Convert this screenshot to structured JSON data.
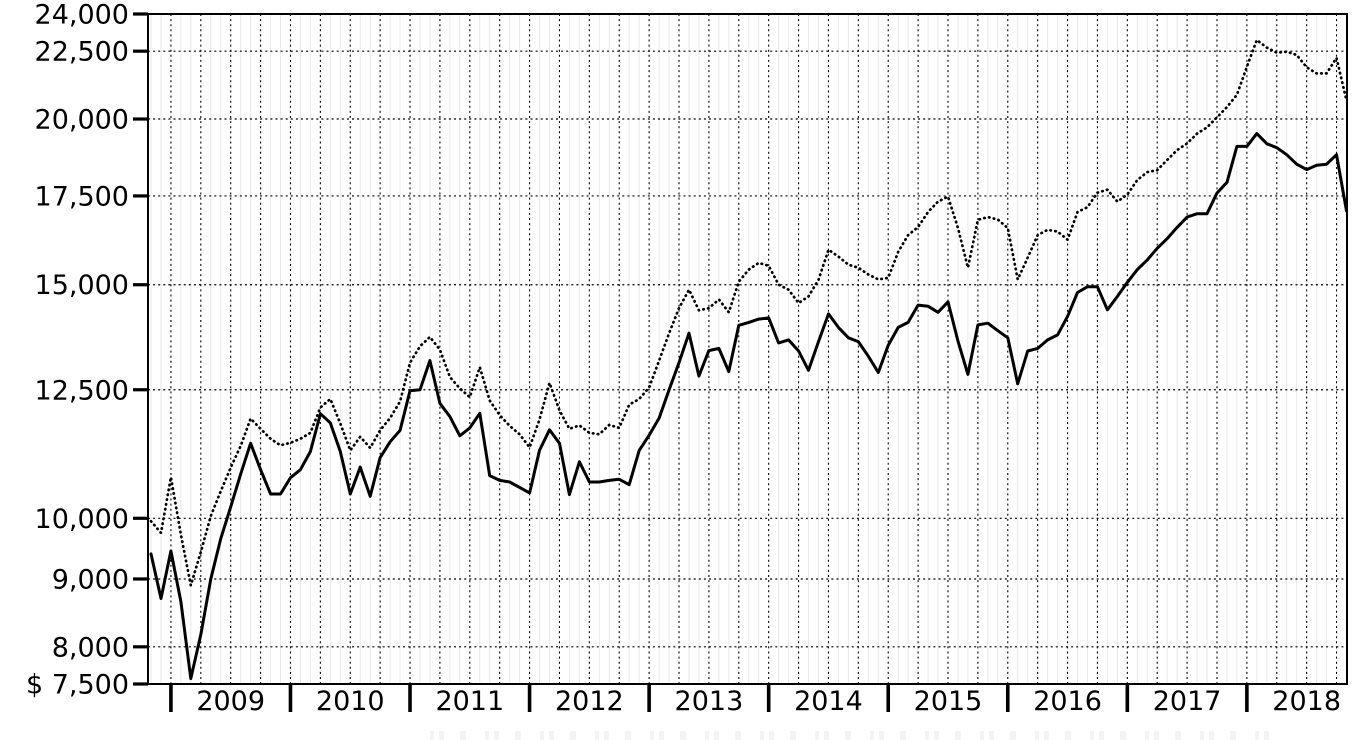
{
  "chart_data": {
    "type": "line",
    "title": "",
    "x_start_month": "2008-11",
    "x_end_month": "2018-11",
    "points_per_series": 121,
    "x_axis": {
      "year_labels": [
        "2009",
        "2010",
        "2011",
        "2012",
        "2013",
        "2014",
        "2015",
        "2016",
        "2017",
        "2018"
      ],
      "major_ticks_at": "year boundaries",
      "minor_gridlines": "monthly (faint), quarterly (dark dotted)"
    },
    "y_axis": {
      "scale": "log",
      "min": 7500,
      "max": 24000,
      "ticks": [
        {
          "value": 24000,
          "label": "24,000"
        },
        {
          "value": 22500,
          "label": "22,500"
        },
        {
          "value": 20000,
          "label": "20,000"
        },
        {
          "value": 17500,
          "label": "17,500"
        },
        {
          "value": 15000,
          "label": "15,000"
        },
        {
          "value": 12500,
          "label": "12,500"
        },
        {
          "value": 10000,
          "label": "10,000"
        },
        {
          "value": 9000,
          "label": "9,000"
        },
        {
          "value": 8000,
          "label": "8,000"
        },
        {
          "value": 7500,
          "label": "$ 7,500"
        }
      ],
      "gridline_values": [
        22500,
        20000,
        17500,
        15000,
        12500,
        10000,
        9000,
        8000
      ]
    },
    "grid": true,
    "legend": "none",
    "series": [
      {
        "name": "dotted-series",
        "style": "dotted",
        "color": "#000000",
        "values": [
          9950,
          9750,
          10740,
          9720,
          8900,
          9430,
          10040,
          10480,
          10920,
          11340,
          11890,
          11680,
          11480,
          11350,
          11400,
          11480,
          11600,
          12120,
          12300,
          11790,
          11250,
          11520,
          11300,
          11650,
          11900,
          12250,
          13100,
          13480,
          13700,
          13400,
          12780,
          12530,
          12340,
          13000,
          12270,
          11960,
          11740,
          11570,
          11310,
          11870,
          12650,
          12060,
          11680,
          11750,
          11600,
          11570,
          11760,
          11700,
          12180,
          12300,
          12550,
          13150,
          13790,
          14400,
          14870,
          14350,
          14400,
          14620,
          14300,
          15080,
          15400,
          15580,
          15500,
          15000,
          14870,
          14530,
          14700,
          15130,
          15940,
          15750,
          15530,
          15450,
          15270,
          15140,
          15180,
          15880,
          16350,
          16580,
          17020,
          17330,
          17480,
          16550,
          15450,
          16790,
          16870,
          16800,
          16550,
          15140,
          15720,
          16350,
          16500,
          16450,
          16220,
          17020,
          17160,
          17600,
          17690,
          17330,
          17540,
          17990,
          18240,
          18300,
          18630,
          18950,
          19170,
          19500,
          19710,
          20060,
          20420,
          20860,
          21900,
          22940,
          22640,
          22440,
          22480,
          22350,
          21880,
          21650,
          21650,
          22240,
          20650
        ]
      },
      {
        "name": "solid-series",
        "style": "solid",
        "color": "#000000",
        "values": [
          9400,
          8700,
          9450,
          8650,
          7570,
          8170,
          9000,
          9650,
          10200,
          10800,
          11390,
          10880,
          10430,
          10430,
          10730,
          10880,
          11230,
          11990,
          11800,
          11230,
          10430,
          10930,
          10390,
          11110,
          11420,
          11650,
          12480,
          12500,
          13150,
          12210,
          11930,
          11540,
          11700,
          12000,
          10770,
          10680,
          10650,
          10550,
          10450,
          11250,
          11660,
          11390,
          10420,
          11030,
          10650,
          10650,
          10680,
          10700,
          10600,
          11250,
          11550,
          11900,
          12500,
          13100,
          13790,
          12800,
          13380,
          13430,
          12900,
          13980,
          14050,
          14130,
          14160,
          13560,
          13630,
          13370,
          12930,
          13590,
          14260,
          13930,
          13680,
          13590,
          13250,
          12880,
          13500,
          13930,
          14050,
          14480,
          14450,
          14300,
          14560,
          13600,
          12840,
          13990,
          14030,
          13850,
          13680,
          12630,
          13370,
          13430,
          13630,
          13750,
          14200,
          14800,
          14950,
          14950,
          14360,
          14700,
          15060,
          15400,
          15660,
          15980,
          16250,
          16570,
          16870,
          16970,
          16970,
          17590,
          17920,
          19070,
          19070,
          19500,
          19160,
          19030,
          18800,
          18490,
          18320,
          18460,
          18490,
          18800,
          17050
        ]
      }
    ]
  },
  "colors": {
    "series": "#000000",
    "grid_major": "#000000",
    "grid_minor": "#e9e9e9",
    "frame": "#000000",
    "text": "#000000",
    "background": "#ffffff"
  }
}
